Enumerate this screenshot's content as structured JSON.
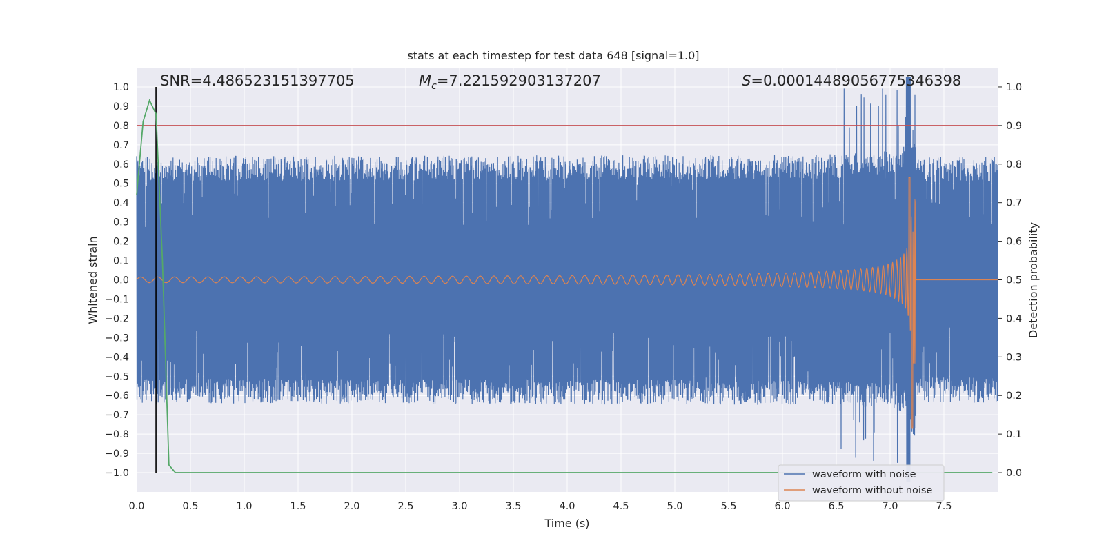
{
  "chart_data": {
    "type": "line",
    "title": "stats at each timestep for test data 648 [signal=1.0]",
    "xlabel": "Time (s)",
    "ylabel": "Whitened strain",
    "ylabel_right": "Detection probability",
    "xlim": [
      0.0,
      8.0
    ],
    "ylim": [
      -1.1,
      1.1
    ],
    "ylim_right": [
      -0.05,
      1.05
    ],
    "xticks": [
      "0.0",
      "0.5",
      "1.0",
      "1.5",
      "2.0",
      "2.5",
      "3.0",
      "3.5",
      "4.0",
      "4.5",
      "5.0",
      "5.5",
      "6.0",
      "6.5",
      "7.0",
      "7.5"
    ],
    "yticks": [
      "1.0",
      "0.9",
      "0.8",
      "0.7",
      "0.6",
      "0.5",
      "0.4",
      "0.3",
      "0.2",
      "0.1",
      "0.0",
      "-0.1",
      "-0.2",
      "-0.3",
      "-0.4",
      "-0.5",
      "-0.6",
      "-0.7",
      "-0.8",
      "-0.9",
      "-1.0"
    ],
    "yticks_right": [
      "1.0",
      "0.9",
      "0.8",
      "0.7",
      "0.6",
      "0.5",
      "0.4",
      "0.3",
      "0.2",
      "0.1",
      "0.0"
    ],
    "annotations": {
      "snr": "SNR=4.486523151397705",
      "mc_symbol": "M",
      "mc_sub": "c",
      "mc_value": "=7.221592903137207",
      "s_symbol": "S",
      "s_value": "=0.00014489056775346398"
    },
    "threshold_probability": 0.9,
    "detection_time": 0.18,
    "merger_time": 7.2,
    "series": [
      {
        "name": "waveform with noise",
        "color": "#4c72b0",
        "noise_envelope": [
          -0.65,
          0.65
        ],
        "peak_min": -0.98,
        "peak_max": 1.0
      },
      {
        "name": "waveform without noise",
        "color": "#dd8452",
        "start_amplitude": 0.025,
        "peak_max": 0.53,
        "peak_min": -0.77
      },
      {
        "name": "detection probability",
        "color": "#55a868",
        "x": [
          0.0,
          0.06,
          0.12,
          0.18,
          0.24,
          0.3,
          0.36,
          7.95
        ],
        "y": [
          0.72,
          0.91,
          0.965,
          0.93,
          0.55,
          0.02,
          0.0,
          0.0
        ]
      }
    ],
    "threshold_color": "#c44e52",
    "legend_position": "lower-right",
    "legend": [
      "waveform with noise",
      "waveform without noise"
    ]
  }
}
